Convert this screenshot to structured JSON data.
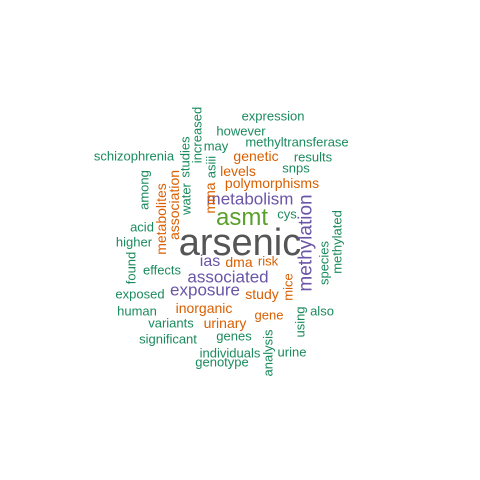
{
  "colors": {
    "grey": "#555555",
    "green": "#5aa02c",
    "purple": "#6a55a6",
    "orange": "#d95f02",
    "teal": "#1b8a5e"
  },
  "words": {
    "arsenic": "arsenic",
    "asmt": "asmt",
    "methylation": "methylation",
    "metabolism": "metabolism",
    "associated": "associated",
    "exposure": "exposure",
    "ias": "ias",
    "dma": "dma",
    "risk": "risk",
    "study": "study",
    "mice": "mice",
    "inorganic": "inorganic",
    "urinary": "urinary",
    "gene": "gene",
    "levels": "levels",
    "genetic": "genetic",
    "polymorphisms": "polymorphisms",
    "mma": "mma",
    "association": "association",
    "metabolites": "metabolites",
    "expression": "expression",
    "however": "however",
    "methyltransferase": "methyltransferase",
    "may": "may",
    "results": "results",
    "snps": "snps",
    "schizophrenia": "schizophrenia",
    "increased": "increased",
    "studies": "studies",
    "water": "water",
    "asiii": "asiii",
    "among": "among",
    "acid": "acid",
    "higher": "higher",
    "found": "found",
    "effects": "effects",
    "exposed": "exposed",
    "human": "human",
    "variants": "variants",
    "significant": "significant",
    "genes": "genes",
    "individuals": "individuals",
    "genotype": "genotype",
    "urine": "urine",
    "analysis": "analysis",
    "using": "using",
    "also": "also",
    "cys": "cys",
    "species": "species",
    "methylated": "methylated"
  }
}
